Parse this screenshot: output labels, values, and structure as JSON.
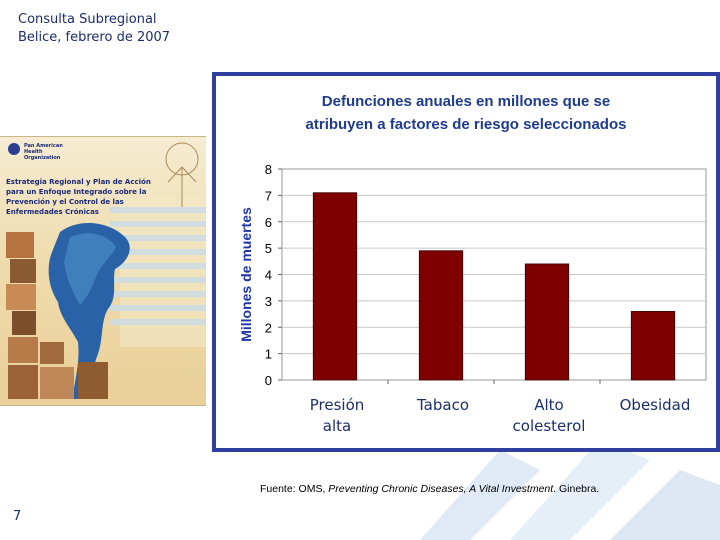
{
  "header": {
    "line1": "Consulta Subregional",
    "line2": "Belice, febrero de 2007"
  },
  "cover": {
    "org_line1": "Pan American",
    "org_line2": "Health",
    "org_line3": "Organization",
    "title": "Estrategia Regional y Plan de Acción para un Enfoque Integrado sobre la Prevención y el Control de las Enfermedades Crónicas"
  },
  "chart_data": {
    "type": "bar",
    "title_line1": "Defunciones anuales en millones que se",
    "title_line2": "atribuyen a factores de riesgo seleccionados",
    "ylabel": "Millones de muertes",
    "xlabel": "",
    "ylim": [
      0,
      8
    ],
    "yticks": [
      0,
      1,
      2,
      3,
      4,
      5,
      6,
      7,
      8
    ],
    "grid": true,
    "categories": [
      {
        "line1": "Presión",
        "line2": "alta"
      },
      {
        "line1": "Tabaco",
        "line2": ""
      },
      {
        "line1": "Alto",
        "line2": "colesterol"
      },
      {
        "line1": "Obesidad",
        "line2": ""
      }
    ],
    "values": [
      7.1,
      4.9,
      4.4,
      2.6
    ],
    "bar_color": "#7f0000",
    "title_color": "#1f3b8f",
    "ylabel_color": "#1f35b0"
  },
  "source": {
    "prefix": "Fuente: OMS, ",
    "work": "Preventing Chronic Diseases, A Vital Investment",
    "suffix": ". Ginebra."
  },
  "page_number": "7"
}
